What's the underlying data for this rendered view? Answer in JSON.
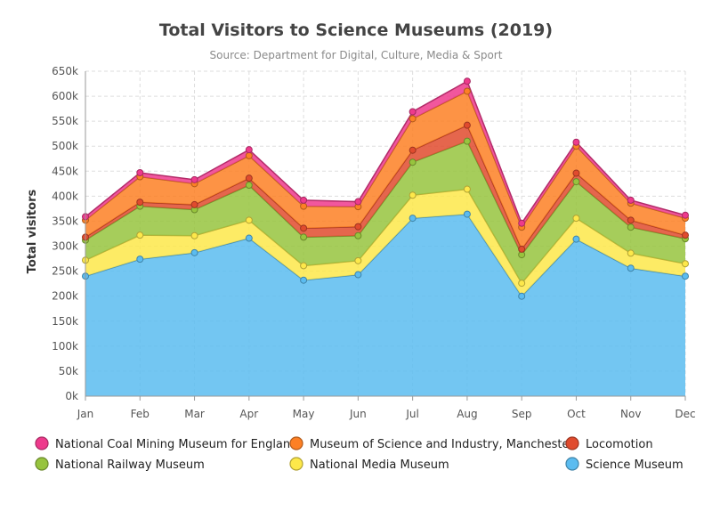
{
  "chart_data": {
    "type": "area",
    "stacked": true,
    "title": "Total Visitors to Science Museums (2019)",
    "subtitle": "Source: Department for Digital, Culture, Media & Sport",
    "ylabel": "Total visitors",
    "xlabel": "",
    "categories": [
      "Jan",
      "Feb",
      "Mar",
      "Apr",
      "May",
      "Jun",
      "Jul",
      "Aug",
      "Sep",
      "Oct",
      "Nov",
      "Dec"
    ],
    "ylim": [
      0,
      650000
    ],
    "yticks": [
      0,
      50000,
      100000,
      150000,
      200000,
      250000,
      300000,
      350000,
      400000,
      450000,
      500000,
      550000,
      600000,
      650000
    ],
    "ytick_labels": [
      "0k",
      "50k",
      "100k",
      "150k",
      "200k",
      "250k",
      "300k",
      "350k",
      "400k",
      "450k",
      "500k",
      "550k",
      "600k",
      "650k"
    ],
    "grid": true,
    "legend_position": "bottom",
    "series": [
      {
        "name": "Science Museum",
        "color": "#5bbcf0",
        "values": [
          240000,
          274000,
          287000,
          316000,
          232000,
          243000,
          356000,
          364000,
          200000,
          314000,
          256000,
          240000
        ]
      },
      {
        "name": "National Media Museum",
        "color": "#fde84a",
        "values": [
          32000,
          48000,
          34000,
          36000,
          29000,
          28000,
          46000,
          50000,
          26000,
          42000,
          30000,
          25000
        ]
      },
      {
        "name": "National Railway Museum",
        "color": "#97c43e",
        "values": [
          40000,
          58000,
          52000,
          70000,
          57000,
          50000,
          66000,
          96000,
          57000,
          73000,
          52000,
          50000
        ]
      },
      {
        "name": "Locomotion",
        "color": "#e04b2e",
        "values": [
          6000,
          8000,
          10000,
          14000,
          18000,
          18000,
          24000,
          32000,
          11000,
          17000,
          14000,
          7000
        ]
      },
      {
        "name": "Museum of Science and Industry, Manchester",
        "color": "#fd8025",
        "values": [
          34000,
          51000,
          42000,
          45000,
          44000,
          40000,
          63000,
          68000,
          44000,
          54000,
          34000,
          34000
        ]
      },
      {
        "name": "National Coal Mining Museum for England",
        "color": "#ee3a8c",
        "values": [
          7000,
          8000,
          8000,
          12000,
          12000,
          10000,
          14000,
          20000,
          8000,
          8000,
          6000,
          6000
        ]
      }
    ],
    "legend_order": [
      "National Coal Mining Museum for England",
      "Museum of Science and Industry, Manchester",
      "Locomotion",
      "National Railway Museum",
      "National Media Museum",
      "Science Museum"
    ]
  }
}
